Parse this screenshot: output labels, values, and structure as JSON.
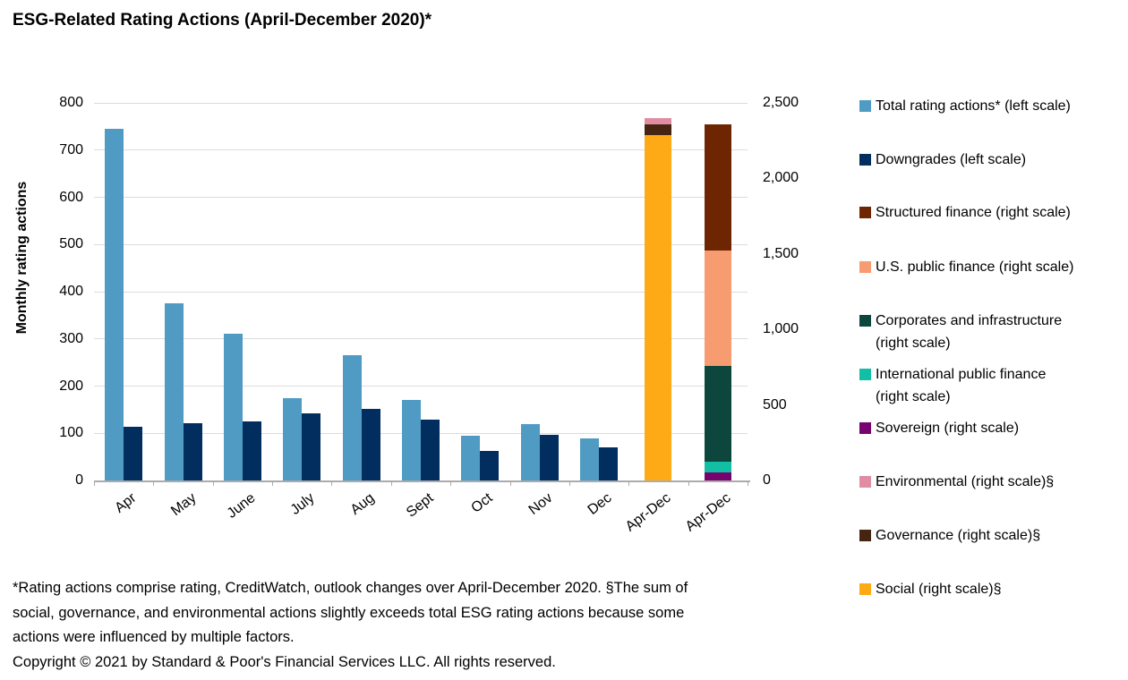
{
  "title": "ESG-Related Rating Actions (April-December 2020)*",
  "chart_data": {
    "type": "bar",
    "categories": [
      "Apr",
      "May",
      "June",
      "July",
      "Aug",
      "Sept",
      "Oct",
      "Nov",
      "Dec",
      "Apr-Dec",
      "Apr-Dec"
    ],
    "series": [
      {
        "name": "Total rating actions* (left scale)",
        "axis": "left",
        "color": "#4F9BC4",
        "values": [
          745,
          375,
          310,
          175,
          265,
          170,
          95,
          120,
          90
        ]
      },
      {
        "name": "Downgrades (left scale)",
        "axis": "left",
        "color": "#022E5F",
        "values": [
          113,
          121,
          126,
          142,
          152,
          128,
          62,
          96,
          70
        ]
      }
    ],
    "stacked_bars": [
      {
        "category": "Apr-Dec",
        "axis": "right",
        "segments": [
          {
            "name": "Social (right scale)§",
            "value": 2285,
            "color": "#FDAA16"
          },
          {
            "name": "Governance (right scale)§",
            "value": 70,
            "color": "#452512"
          },
          {
            "name": "Environmental (right scale)§",
            "value": 45,
            "color": "#E08DA4"
          }
        ]
      },
      {
        "category": "Apr-Dec",
        "axis": "right",
        "segments": [
          {
            "name": "Sovereign (right scale)",
            "value": 55,
            "color": "#75046F"
          },
          {
            "name": "International public finance (right scale)",
            "value": 70,
            "color": "#12BFA4"
          },
          {
            "name": "Corporates and infrastructure (right scale)",
            "value": 635,
            "color": "#0C463D"
          },
          {
            "name": "U.S. public finance (right scale)",
            "value": 760,
            "color": "#F79B70"
          },
          {
            "name": "Structured finance (right scale)",
            "value": 840,
            "color": "#6E2502"
          }
        ]
      }
    ],
    "left_axis": {
      "label": "Monthly rating actions",
      "min": 0,
      "max": 800,
      "step": 100,
      "tick_labels": [
        "0",
        "100",
        "200",
        "300",
        "400",
        "500",
        "600",
        "700",
        "800"
      ]
    },
    "right_axis": {
      "min": 0,
      "max": 2500,
      "step": 500,
      "tick_labels": [
        "0",
        "500",
        "1,000",
        "1,500",
        "2,000",
        "2,500"
      ]
    },
    "grid": true,
    "legend_position": "right"
  },
  "legend": {
    "items": [
      {
        "lines": [
          "Total rating actions* (left scale)"
        ],
        "color": "#4F9BC4"
      },
      {
        "lines": [
          "Downgrades (left scale)"
        ],
        "color": "#022E5F"
      },
      {
        "lines": [
          "Structured finance (right scale)"
        ],
        "color": "#6E2502"
      },
      {
        "lines": [
          "U.S. public finance (right scale)"
        ],
        "color": "#F79B70"
      },
      {
        "lines": [
          "Corporates and infrastructure",
          "(right scale)"
        ],
        "color": "#0C463D"
      },
      {
        "lines": [
          "International public finance",
          "(right scale)"
        ],
        "color": "#12BFA4"
      },
      {
        "lines": [
          "Sovereign (right scale)"
        ],
        "color": "#75046F"
      },
      {
        "lines": [
          "Environmental (right scale)§"
        ],
        "color": "#E08DA4"
      },
      {
        "lines": [
          "Governance (right scale)§"
        ],
        "color": "#452512"
      },
      {
        "lines": [
          "Social (right scale)§"
        ],
        "color": "#FDAA16"
      }
    ]
  },
  "footnote_lines": [
    "*Rating actions comprise rating, CreditWatch, outlook changes over April-December 2020. §The sum of",
    "social, governance, and environmental actions slightly exceeds total ESG rating actions because some",
    "actions were influenced by multiple factors."
  ],
  "copyright": "Copyright © 2021 by Standard & Poor's Financial Services LLC. All rights reserved."
}
